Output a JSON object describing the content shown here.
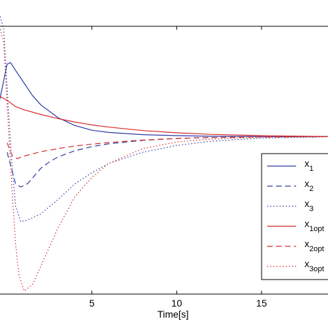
{
  "chart_data": {
    "type": "line",
    "title": "",
    "xlabel": "Time[s]",
    "ylabel": "",
    "xlim": [
      -0.5,
      19
    ],
    "ylim": [
      -5,
      3.5
    ],
    "xticks": [
      5,
      10,
      15
    ],
    "x_tick_labels": [
      "5",
      "10",
      "15"
    ],
    "grid": false,
    "legend_position": "right",
    "series": [
      {
        "name": "x",
        "sub": "1",
        "color": "#2b3aa8",
        "dash": "solid",
        "x": [
          -0.5,
          0,
          0.2,
          0.5,
          1,
          1.5,
          2,
          3,
          4,
          5,
          6,
          8,
          10,
          12,
          15,
          19
        ],
        "y": [
          1.0,
          2.3,
          2.35,
          2.1,
          1.7,
          1.3,
          1.0,
          0.6,
          0.35,
          0.2,
          0.13,
          0.06,
          0.03,
          0.01,
          0.0,
          0.0
        ]
      },
      {
        "name": "x",
        "sub": "2",
        "color": "#2b3aa8",
        "dash": "dashed",
        "x": [
          0,
          0.2,
          0.5,
          0.8,
          1.2,
          1.6,
          2,
          2.5,
          3,
          4,
          5,
          6,
          8,
          10,
          12,
          15,
          19
        ],
        "y": [
          -0.5,
          -0.9,
          -1.5,
          -1.6,
          -1.5,
          -1.25,
          -1.0,
          -0.8,
          -0.65,
          -0.45,
          -0.32,
          -0.23,
          -0.12,
          -0.06,
          -0.03,
          -0.01,
          0.0
        ]
      },
      {
        "name": "x",
        "sub": "3",
        "color": "#2b3aa8",
        "dash": "dotted",
        "x": [
          -0.5,
          -0.2,
          0,
          0.3,
          0.5,
          0.8,
          1.2,
          2,
          3,
          4,
          5,
          6,
          8,
          10,
          12,
          15,
          19
        ],
        "y": [
          4.0,
          3.4,
          1.5,
          -1.0,
          -2.2,
          -2.7,
          -2.65,
          -2.45,
          -2.0,
          -1.5,
          -1.15,
          -0.85,
          -0.5,
          -0.28,
          -0.15,
          -0.05,
          -0.01
        ]
      },
      {
        "name": "x",
        "sub": "1opt",
        "color": "#d42b2b",
        "dash": "solid",
        "x": [
          -0.5,
          0,
          0.5,
          1,
          2,
          3,
          4,
          5,
          6,
          8,
          10,
          12,
          15,
          19
        ],
        "y": [
          1.3,
          1.15,
          0.95,
          0.85,
          0.7,
          0.57,
          0.46,
          0.37,
          0.3,
          0.19,
          0.12,
          0.07,
          0.03,
          0.0
        ]
      },
      {
        "name": "x",
        "sub": "2opt",
        "color": "#d42b2b",
        "dash": "dashed",
        "x": [
          0,
          0.3,
          0.6,
          1,
          1.5,
          2,
          3,
          4,
          5,
          6,
          8,
          10,
          12,
          15,
          19
        ],
        "y": [
          -0.2,
          -0.6,
          -0.7,
          -0.62,
          -0.55,
          -0.48,
          -0.38,
          -0.3,
          -0.24,
          -0.19,
          -0.11,
          -0.06,
          -0.03,
          -0.01,
          0.0
        ]
      },
      {
        "name": "x",
        "sub": "3opt",
        "color": "#d42b2b",
        "dash": "dotted",
        "x": [
          -0.5,
          -0.2,
          0,
          0.3,
          0.5,
          0.7,
          1,
          1.5,
          2,
          3,
          4,
          5,
          6,
          8,
          10,
          12,
          15,
          19
        ],
        "y": [
          3.6,
          3.0,
          1.0,
          -1.8,
          -3.4,
          -4.4,
          -4.9,
          -4.7,
          -4.1,
          -2.9,
          -1.9,
          -1.3,
          -0.85,
          -0.38,
          -0.17,
          -0.08,
          -0.02,
          0.0
        ]
      }
    ]
  }
}
